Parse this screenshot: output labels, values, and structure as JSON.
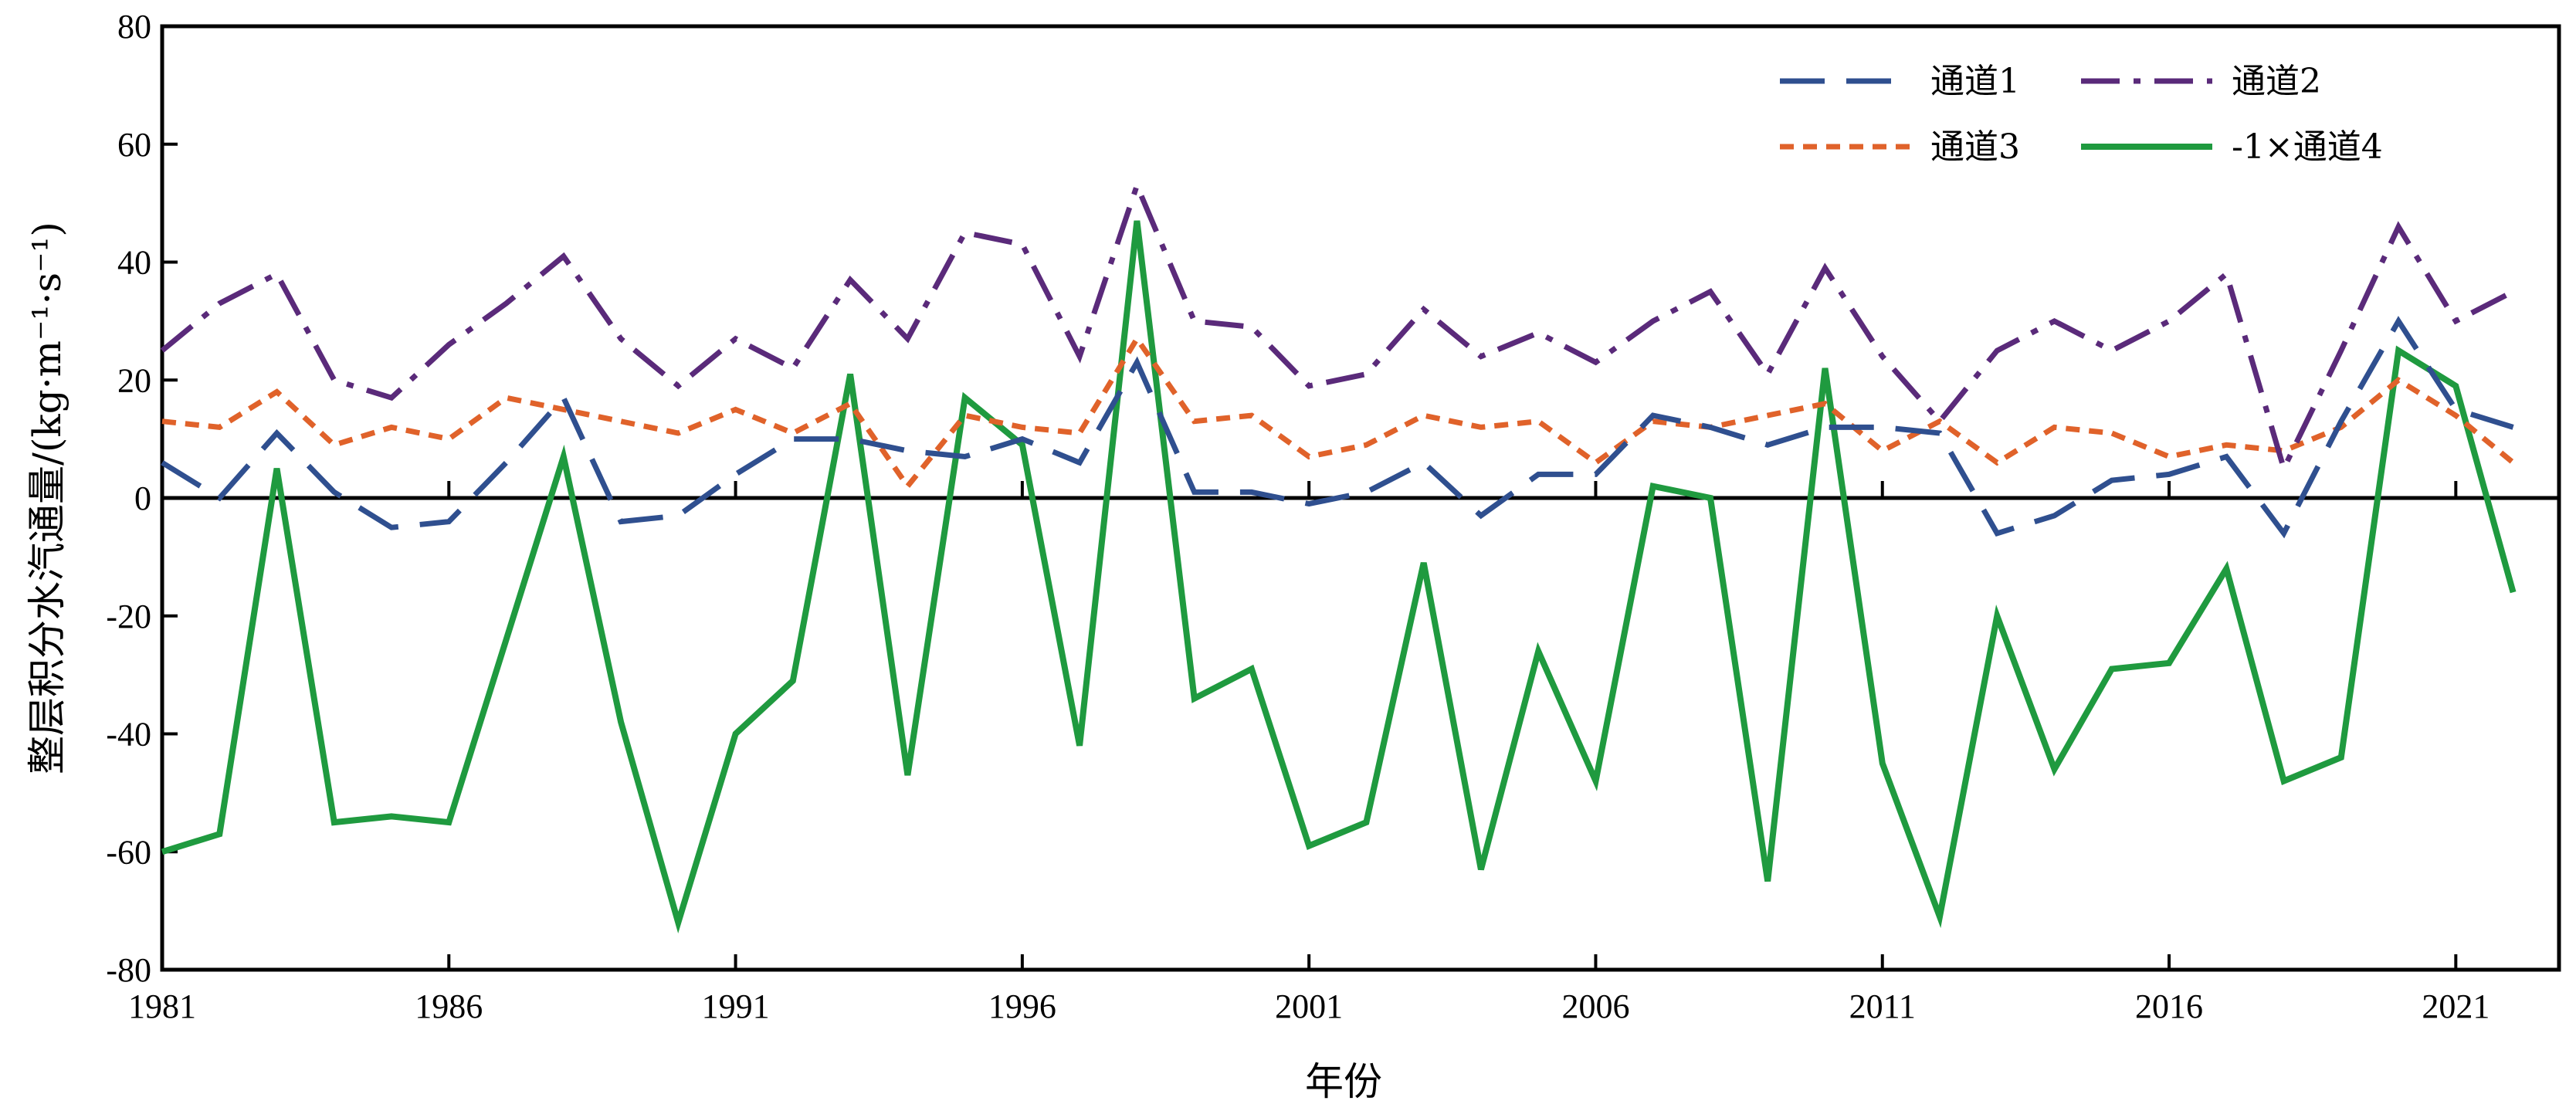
{
  "chart_data": {
    "type": "line",
    "title": "",
    "xlabel": "年份",
    "ylabel": "整层积分水汽通量/(kg·m⁻¹·s⁻¹)",
    "xlim": [
      1981,
      2022.8
    ],
    "ylim": [
      -80,
      80
    ],
    "xticks": [
      1981,
      1986,
      1991,
      1996,
      2001,
      2006,
      2011,
      2016,
      2021
    ],
    "yticks": [
      -80,
      -60,
      -40,
      -20,
      0,
      20,
      40,
      60,
      80
    ],
    "grid": false,
    "zero_line": true,
    "legend_position": "top-right",
    "x": [
      1981,
      1982,
      1983,
      1984,
      1985,
      1986,
      1987,
      1988,
      1989,
      1990,
      1991,
      1992,
      1993,
      1994,
      1995,
      1996,
      1997,
      1998,
      1999,
      2000,
      2001,
      2002,
      2003,
      2004,
      2005,
      2006,
      2007,
      2008,
      2009,
      2010,
      2011,
      2012,
      2013,
      2014,
      2015,
      2016,
      2017,
      2018,
      2019,
      2020,
      2021,
      2022
    ],
    "series": [
      {
        "name": "通道1",
        "color": "#2f4f8f",
        "dash": "long-dash",
        "values": [
          6,
          0,
          11,
          1,
          -5,
          -4,
          6,
          17,
          -4,
          -3,
          4,
          10,
          10,
          8,
          7,
          10,
          6,
          23,
          1,
          1,
          -1,
          1,
          6,
          -3,
          4,
          4,
          14,
          12,
          9,
          12,
          12,
          11,
          -6,
          -3,
          3,
          4,
          7,
          -6,
          13,
          30,
          15,
          12
        ]
      },
      {
        "name": "通道2",
        "color": "#5a2a7a",
        "dash": "dash-dot",
        "values": [
          25,
          33,
          38,
          20,
          17,
          26,
          33,
          41,
          27,
          19,
          27,
          22,
          37,
          27,
          45,
          43,
          24,
          53,
          30,
          29,
          19,
          21,
          32,
          24,
          28,
          23,
          30,
          35,
          21,
          39,
          24,
          13,
          25,
          30,
          25,
          30,
          38,
          5,
          25,
          46,
          30,
          35
        ]
      },
      {
        "name": "通道3",
        "color": "#e0622a",
        "dash": "short-dash",
        "values": [
          13,
          12,
          18,
          9,
          12,
          10,
          17,
          15,
          13,
          11,
          15,
          11,
          16,
          2,
          14,
          12,
          11,
          27,
          13,
          14,
          7,
          9,
          14,
          12,
          13,
          6,
          13,
          12,
          14,
          16,
          8,
          13,
          6,
          12,
          11,
          7,
          9,
          8,
          12,
          20,
          14,
          6
        ]
      },
      {
        "name": "-1×通道4",
        "color": "#1f9a3f",
        "dash": "solid",
        "values": [
          -60,
          -57,
          5,
          -55,
          -54,
          -55,
          -24,
          7,
          -38,
          -72,
          -40,
          -31,
          21,
          -47,
          17,
          9,
          -42,
          47,
          -34,
          -29,
          -59,
          -55,
          -11,
          -63,
          -26,
          -48,
          2,
          0,
          -65,
          22,
          -45,
          -71,
          -20,
          -46,
          -29,
          -28,
          -12,
          -48,
          -44,
          25,
          19,
          -16
        ]
      }
    ]
  }
}
